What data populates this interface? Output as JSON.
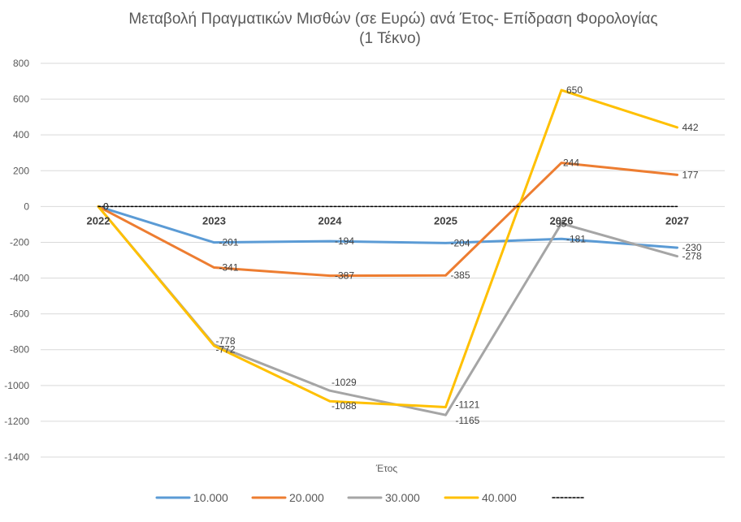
{
  "chart_data": {
    "type": "line",
    "title_line1": "Μεταβολή Πραγματικών Μισθών (σε Ευρώ) ανά Έτος- Επίδραση Φορολογίας",
    "title_line2": "(1  Τέκνο)",
    "xlabel": "Έτος",
    "ylabel": "",
    "ylim": [
      -1400,
      800
    ],
    "ytick_step": 200,
    "grid": true,
    "categories": [
      "2022",
      "2023",
      "2024",
      "2025",
      "2026",
      "2027"
    ],
    "series": [
      {
        "name": "10.000",
        "color": "#5B9BD5",
        "values": [
          0,
          -201,
          -194,
          -204,
          -181,
          -230
        ],
        "labels": [
          "0",
          "-201",
          "-194",
          "-204",
          "-181",
          "-230"
        ]
      },
      {
        "name": "20.000",
        "color": "#ED7D31",
        "values": [
          0,
          -341,
          -387,
          -385,
          244,
          177
        ],
        "labels": [
          "0",
          "-341",
          "-387",
          "-385",
          "244",
          "177"
        ]
      },
      {
        "name": "30.000",
        "color": "#A5A5A5",
        "values": [
          0,
          -772,
          -1029,
          -1165,
          -95,
          -278
        ],
        "labels": [
          "0",
          "-772",
          "-1029",
          "-1165",
          "-95",
          "-278"
        ]
      },
      {
        "name": "40.000",
        "color": "#FFC000",
        "values": [
          0,
          -778,
          -1088,
          -1121,
          650,
          442
        ],
        "labels": [
          "0",
          "-778",
          "-1088",
          "-1121",
          "650",
          "442"
        ]
      },
      {
        "name": "",
        "color": "#000000",
        "dashed": true,
        "values": [
          0,
          0,
          0,
          0,
          0,
          0
        ],
        "labels": []
      }
    ],
    "legend_position": "bottom"
  }
}
